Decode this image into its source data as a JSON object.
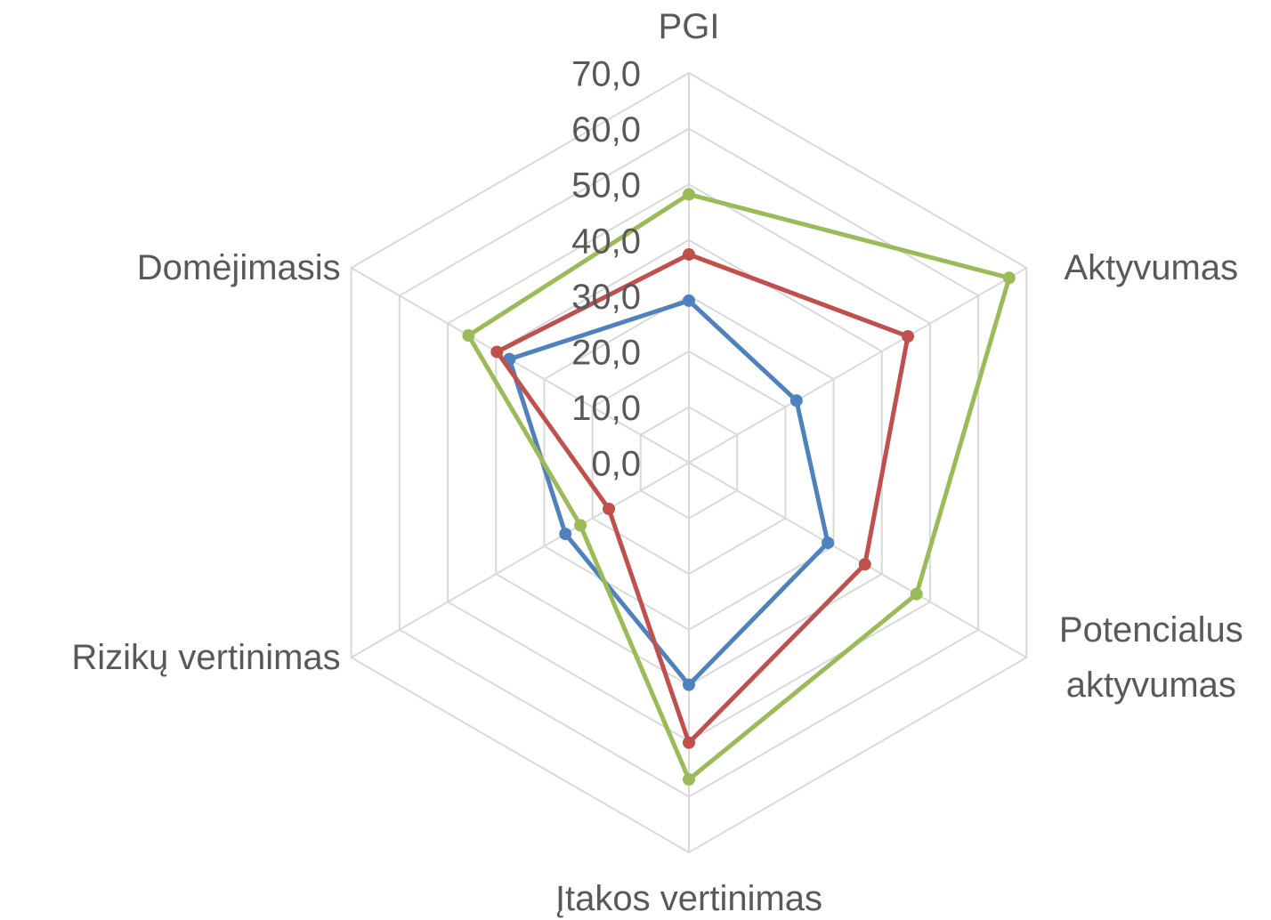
{
  "chart_data": {
    "type": "radar",
    "categories": [
      "PGI",
      "Aktyvumas",
      "Potencialus aktyvumas",
      "Įtakos vertinimas",
      "Rizikų vertinimas",
      "Domėjimasis"
    ],
    "series": [
      {
        "color": "#4f81bd",
        "values": [
          29.1,
          22.3,
          28.8,
          39.9,
          25.6,
          37.2
        ]
      },
      {
        "color": "#c0504d",
        "values": [
          37.4,
          45.4,
          36.5,
          50.3,
          16.6,
          39.8
        ]
      },
      {
        "color": "#9bbb59",
        "values": [
          48.2,
          66.4,
          47.2,
          56.9,
          22.5,
          45.7
        ]
      }
    ],
    "ylim": [
      0,
      70
    ],
    "yticks": [
      {
        "value": 0,
        "label": "0,0"
      },
      {
        "value": 10,
        "label": "10,0"
      },
      {
        "value": 20,
        "label": "20,0"
      },
      {
        "value": 30,
        "label": "30,0"
      },
      {
        "value": 40,
        "label": "40,0"
      },
      {
        "value": 50,
        "label": "50,0"
      },
      {
        "value": 60,
        "label": "60,0"
      },
      {
        "value": 70,
        "label": "70,0"
      }
    ],
    "grid": true
  }
}
